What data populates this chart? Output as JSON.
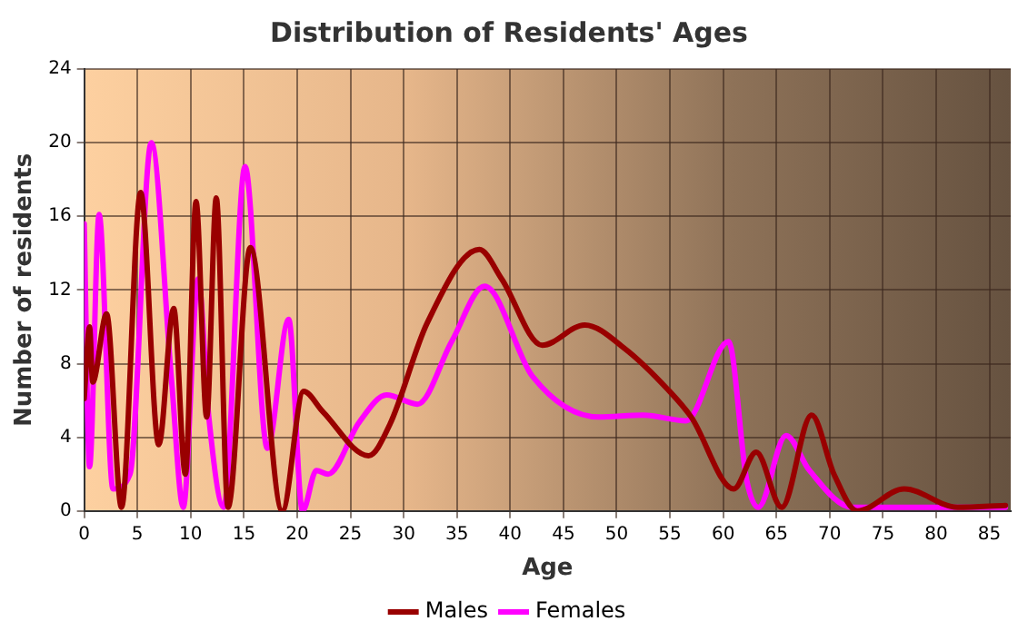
{
  "chart_data": {
    "type": "line",
    "title": "Distribution of Residents' Ages",
    "xlabel": "Age",
    "ylabel": "Number of residents",
    "xlim": [
      0,
      87
    ],
    "xticks": [
      0,
      5,
      10,
      15,
      20,
      25,
      30,
      35,
      40,
      45,
      50,
      55,
      60,
      65,
      70,
      75,
      80,
      85
    ],
    "ylim": [
      0,
      24
    ],
    "yticks": [
      0,
      4,
      8,
      12,
      16,
      20,
      24
    ],
    "grid": true,
    "legend": "bottom",
    "marker": "none",
    "line_style": "solid",
    "series": [
      {
        "name": "Males",
        "color": "#990000",
        "x": [
          0,
          0.5,
          0.8,
          2.1,
          3.5,
          5.3,
          7,
          8.4,
          9.5,
          10.5,
          11.5,
          12.4,
          13.5,
          15.6,
          18.6,
          20.6,
          22.4,
          26.7,
          28.7,
          32.2,
          37.1,
          39.2,
          43,
          47,
          50.8,
          54.8,
          57,
          61,
          63.1,
          65.5,
          68.3,
          70.4,
          72.6,
          77,
          82,
          86.5
        ],
        "values": [
          6.1,
          10,
          7,
          10.7,
          0.2,
          17.3,
          3.6,
          11,
          2,
          16.8,
          5.1,
          17,
          0.2,
          14.3,
          0,
          6.5,
          5.4,
          3,
          4.7,
          10.2,
          14.2,
          12.6,
          9,
          10.1,
          8.8,
          6.6,
          5.1,
          1.2,
          3.2,
          0.2,
          5.2,
          2,
          0,
          1.2,
          0.2,
          0.3
        ]
      },
      {
        "name": "Females",
        "color": "#ff00ff",
        "x": [
          0,
          0.5,
          1.4,
          2.7,
          4.3,
          6.3,
          8.2,
          9.3,
          10.7,
          11.7,
          13.1,
          15.1,
          17.2,
          19.2,
          20.5,
          21.8,
          22.9,
          25.8,
          28.4,
          31.3,
          34.5,
          37.6,
          42.1,
          48.3,
          52.5,
          56.5,
          60.5,
          62.2,
          63.3,
          65.9,
          68.1,
          72.1,
          76.8,
          86.5
        ],
        "values": [
          15.6,
          2.4,
          16.1,
          1.2,
          2,
          20,
          7.1,
          0.2,
          12.6,
          5.1,
          0.2,
          18.7,
          3.4,
          10.4,
          0,
          2.2,
          2,
          4.8,
          6.3,
          5.8,
          9.2,
          12.2,
          7.3,
          5.1,
          5.2,
          4.9,
          9.2,
          1.7,
          0.2,
          4.1,
          2.2,
          0.2,
          0.2,
          0.2
        ]
      }
    ]
  }
}
